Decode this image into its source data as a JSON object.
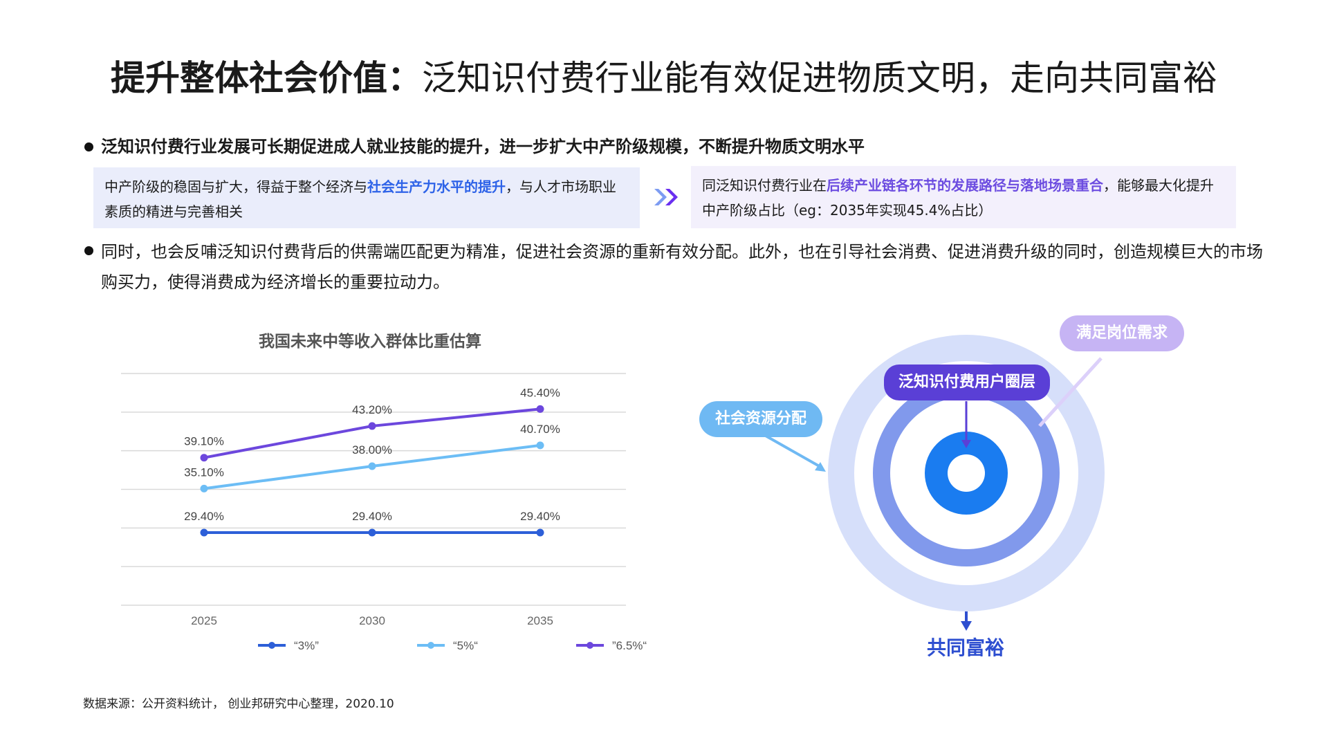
{
  "header": {
    "title_bold": "提升整体社会价值：",
    "title_rest": "泛知识付费行业能有效促进物质文明，走向共同富裕"
  },
  "bullet1": "泛知识付费行业发展可长期促进成人就业技能的提升，进一步扩大中产阶级规模，不断提升物质文明水平",
  "box_left": {
    "pre": "中产阶级的稳固与扩大，得益于整个经济与",
    "highlight": "社会生产力水平的提升",
    "post": "，与人才市场职业素质的精进与完善相关"
  },
  "box_right": {
    "pre": "同泛知识付费行业在",
    "highlight": "后续产业链各环节的发展路径与落地场景重合",
    "post": "，能够最大化提升中产阶级占比（eg：2035年实现45.4%占比）"
  },
  "bullet2": "同时，也会反哺泛知识付费背后的供需端匹配更为精准，促进社会资源的重新有效分配。此外，也在引导社会消费、促进消费升级的同时，创造规模巨大的市场购买力，使得消费成为经济增长的重要拉动力。",
  "diagram": {
    "pill_left": "社会资源分配",
    "pill_center": "泛知识付费用户圈层",
    "pill_right": "满足岗位需求",
    "result": "共同富裕",
    "colors": {
      "outer_ring": "#d6dffa",
      "middle_ring": "#8199ec",
      "inner_ring": "#1a7cf0",
      "arrow_dark": "#2e4fd0"
    }
  },
  "source": "数据来源：公开资料统计， 创业邦研究中心整理，2020.10",
  "chart_data": {
    "type": "line",
    "title": "我国未来中等收入群体比重估算",
    "categories": [
      "2025",
      "2030",
      "2035"
    ],
    "series": [
      {
        "name": "“3%”",
        "values": [
          29.4,
          29.4,
          29.4
        ],
        "labels": [
          "29.40%",
          "29.40%",
          "29.40%"
        ],
        "color": "#2d5fd8"
      },
      {
        "name": "“5%“",
        "values": [
          35.1,
          38.0,
          40.7
        ],
        "labels": [
          "35.10%",
          "38.00%",
          "40.70%"
        ],
        "color": "#6cbdf5"
      },
      {
        "name": "”6.5%“",
        "values": [
          39.1,
          43.2,
          45.4
        ],
        "labels": [
          "39.10%",
          "43.20%",
          "45.40%"
        ],
        "color": "#6c47dd"
      }
    ],
    "ylim": [
      20,
      50
    ],
    "grid": true,
    "legend": "bottom"
  }
}
